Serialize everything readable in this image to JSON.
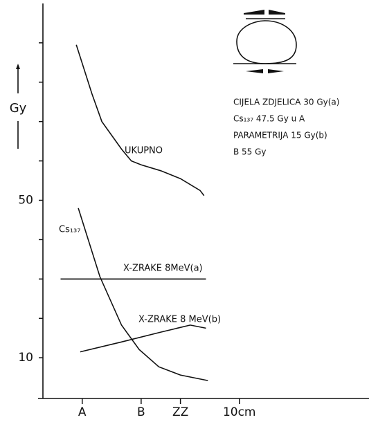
{
  "chart_data": {
    "type": "line",
    "ylabel": "Gy",
    "xlim": [
      0,
      16.6
    ],
    "ylim": [
      0,
      100
    ],
    "xticks": [
      {
        "value": 2,
        "label": "A"
      },
      {
        "value": 5,
        "label": "B"
      },
      {
        "value": 7,
        "label": "ZZ"
      },
      {
        "value": 10,
        "label": "10cm"
      }
    ],
    "yticks": [
      {
        "value": 10,
        "label": "10"
      },
      {
        "value": 20,
        "label": null
      },
      {
        "value": 30,
        "label": null
      },
      {
        "value": 40,
        "label": null
      },
      {
        "value": 50,
        "label": "50"
      },
      {
        "value": 60,
        "label": null
      },
      {
        "value": 70,
        "label": null
      },
      {
        "value": 80,
        "label": null
      },
      {
        "value": 90,
        "label": null
      }
    ],
    "series": [
      {
        "name": "UKUPNO",
        "color": "#111111",
        "x": [
          1.7,
          2.5,
          3,
          4,
          4.5,
          5,
          6,
          7,
          8,
          8.2
        ],
        "values": [
          89.5,
          77,
          70,
          63,
          60,
          59,
          57.5,
          55.5,
          52.5,
          51.2
        ]
      },
      {
        "name": "Cs₁₃₇",
        "color": "#111111",
        "x": [
          1.8,
          2.9,
          4,
          4.9,
          5.9,
          7,
          8.4
        ],
        "values": [
          48,
          30.6,
          18.3,
          12.1,
          7.7,
          5.6,
          4.2
        ]
      },
      {
        "name": "X-ZRAKE 8MeV(a)",
        "color": "#111111",
        "x": [
          0.9,
          8.3
        ],
        "values": [
          30,
          30
        ]
      },
      {
        "name": "X-ZRAKE 8 MeV(b)",
        "color": "#111111",
        "x": [
          1.9,
          4,
          6,
          7.5,
          8.3
        ],
        "values": [
          11.5,
          14,
          16.5,
          18.3,
          17.5
        ]
      }
    ],
    "notes": [
      "CIJELA ZDJELICA  30 Gy(a)",
      "Cs₁₃₇ 47.5 Gy u A",
      "PARAMETRIJA  15 Gy(b)",
      "B 55 Gy"
    ]
  }
}
